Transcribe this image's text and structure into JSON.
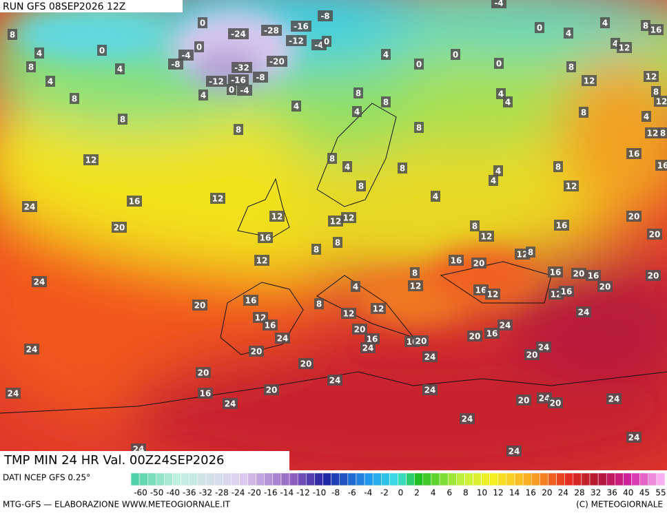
{
  "header": {
    "run": "RUN GFS 08SEP2026 12Z",
    "title": "TMP MIN 24 HR Val. 00Z24SEP2026"
  },
  "footer": {
    "source": "DATI NCEP GFS 0.25°",
    "credit": "MTG-GFS — ELABORAZIONE WWW.METEOGIORNALE.IT",
    "copyright": "(C) METEOGIORNALE"
  },
  "legend": {
    "labels": [
      -60,
      -50,
      -40,
      -36,
      -32,
      -28,
      -24,
      -20,
      -16,
      -14,
      -12,
      -10,
      -8,
      -6,
      -4,
      -2,
      0,
      2,
      4,
      6,
      8,
      10,
      12,
      14,
      16,
      20,
      24,
      28,
      32,
      36,
      40,
      45,
      55
    ]
  },
  "map_labels": [
    0,
    -24,
    -28,
    -16,
    -8,
    -12,
    -4,
    0,
    8,
    4,
    0,
    -4,
    -8,
    0,
    -32,
    -20,
    4,
    8,
    4,
    8,
    -12,
    -16,
    -8,
    0,
    -4,
    4,
    4,
    8,
    8,
    8,
    8,
    4,
    8,
    4,
    0,
    0,
    0,
    0,
    4,
    4,
    8,
    16,
    4,
    12,
    8,
    12,
    12,
    8,
    12,
    4,
    4,
    8,
    4,
    12,
    8,
    16,
    16,
    12,
    8,
    4,
    8,
    4,
    4,
    8,
    12,
    8,
    4,
    24,
    16,
    12,
    20,
    12,
    12,
    12,
    8,
    12,
    16,
    20,
    20,
    16,
    8,
    8,
    12,
    8,
    12,
    16,
    20,
    24,
    8,
    12,
    16,
    20,
    16,
    20,
    20,
    4,
    16,
    12,
    12,
    16,
    20,
    16,
    8,
    12,
    24,
    12,
    16,
    12,
    20,
    24,
    24,
    16,
    16,
    20,
    20,
    16,
    24,
    20,
    24,
    24,
    20,
    24,
    20,
    20,
    24,
    24,
    16,
    20,
    24,
    24,
    20,
    24,
    20,
    24,
    24,
    24,
    24,
    24,
    -4
  ]
}
